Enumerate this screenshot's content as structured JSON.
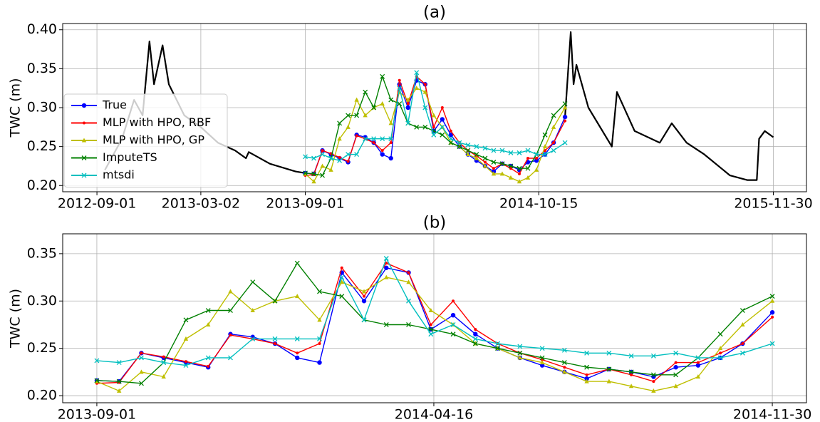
{
  "chart_data": [
    {
      "type": "line",
      "title": "(a)",
      "y_label": "TWC (m)",
      "xlim": [
        "2012-07-03",
        "2016-01-27"
      ],
      "ylim": [
        0.192,
        0.408
      ],
      "xticks": [
        "2012-09-01",
        "2013-03-02",
        "2013-09-01",
        "2014-10-15",
        "2015-11-30"
      ],
      "yticks": [
        {
          "value": 0.2,
          "label": "0.20"
        },
        0.25,
        {
          "value": 0.3,
          "label": "0.30"
        },
        0.35,
        {
          "value": 0.4,
          "label": "0.40"
        }
      ],
      "grid": true,
      "legend": "upper left",
      "x": [
        "2013-09-01",
        "2013-09-16",
        "2013-10-01",
        "2013-10-16",
        "2013-10-31",
        "2013-11-15",
        "2013-11-30",
        "2013-12-15",
        "2013-12-30",
        "2014-01-14",
        "2014-01-29",
        "2014-02-13",
        "2014-02-28",
        "2014-03-15",
        "2014-03-30",
        "2014-04-14",
        "2014-04-29",
        "2014-05-14",
        "2014-05-29",
        "2014-06-13",
        "2014-06-28",
        "2014-07-13",
        "2014-07-28",
        "2014-08-12",
        "2014-08-27",
        "2014-09-11",
        "2014-09-26",
        "2014-10-11",
        "2014-10-26",
        "2014-11-10",
        "2014-11-30"
      ],
      "series": [
        {
          "color": "#000000",
          "marker": "none",
          "x": [
            "2012-09-15",
            "2012-10-15",
            "2012-11-05",
            "2012-11-20",
            "2012-12-02",
            "2012-12-10",
            "2012-12-25",
            "2013-01-05",
            "2013-02-01",
            "2013-03-02",
            "2013-04-01",
            "2013-05-01",
            "2013-05-20",
            "2013-05-25",
            "2013-07-01",
            "2013-08-15",
            "2013-09-01",
            "2014-04-16",
            "2014-11-30",
            "2014-12-10",
            "2014-12-15",
            "2014-12-20",
            "2015-01-10",
            "2015-02-20",
            "2015-03-01",
            "2015-04-01",
            "2015-05-15",
            "2015-06-05",
            "2015-07-01",
            "2015-08-01",
            "2015-09-15",
            "2015-10-15",
            "2015-11-01",
            "2015-11-05",
            "2015-11-15",
            "2015-11-30"
          ],
          "values": [
            0.22,
            0.26,
            0.31,
            0.29,
            0.385,
            0.33,
            0.38,
            0.33,
            0.29,
            0.275,
            0.255,
            0.245,
            0.235,
            0.243,
            0.228,
            0.218,
            0.216,
            null,
            0.288,
            0.397,
            0.33,
            0.355,
            0.3,
            0.25,
            0.32,
            0.27,
            0.255,
            0.28,
            0.255,
            0.24,
            0.213,
            0.207,
            0.207,
            0.26,
            0.27,
            0.262
          ]
        },
        {
          "name": "True",
          "color": "#0000ff",
          "marker": "circle",
          "values": [
            0.216,
            0.215,
            0.245,
            0.24,
            0.235,
            0.23,
            0.265,
            0.262,
            0.255,
            0.24,
            0.235,
            0.33,
            0.3,
            0.335,
            0.33,
            0.27,
            0.285,
            0.265,
            0.25,
            0.24,
            0.232,
            0.225,
            0.218,
            0.228,
            0.225,
            0.22,
            0.23,
            0.232,
            0.24,
            0.255,
            0.288
          ]
        },
        {
          "name": "MLP with HPO, RBF",
          "color": "#ff0000",
          "marker": "dot",
          "values": [
            0.213,
            0.214,
            0.245,
            0.241,
            0.236,
            0.231,
            0.264,
            0.26,
            0.255,
            0.245,
            0.255,
            0.335,
            0.305,
            0.34,
            0.33,
            0.275,
            0.3,
            0.27,
            0.255,
            0.245,
            0.238,
            0.23,
            0.222,
            0.228,
            0.222,
            0.215,
            0.235,
            0.235,
            0.245,
            0.255,
            0.283
          ]
        },
        {
          "name": "MLP with HPO, GP",
          "color": "#bfbf00",
          "marker": "triangle",
          "values": [
            0.215,
            0.205,
            0.225,
            0.22,
            0.26,
            0.275,
            0.31,
            0.29,
            0.3,
            0.305,
            0.28,
            0.32,
            0.31,
            0.325,
            0.32,
            0.29,
            0.275,
            0.255,
            0.25,
            0.24,
            0.235,
            0.225,
            0.215,
            0.215,
            0.21,
            0.205,
            0.21,
            0.22,
            0.25,
            0.275,
            0.3
          ]
        },
        {
          "name": "ImputeTS",
          "color": "#008000",
          "marker": "x",
          "values": [
            0.216,
            0.215,
            0.213,
            0.235,
            0.28,
            0.29,
            0.29,
            0.32,
            0.3,
            0.34,
            0.31,
            0.305,
            0.28,
            0.275,
            0.275,
            0.27,
            0.265,
            0.255,
            0.25,
            0.245,
            0.24,
            0.235,
            0.23,
            0.228,
            0.225,
            0.222,
            0.222,
            0.24,
            0.265,
            0.29,
            0.305
          ]
        },
        {
          "name": "mtsdi",
          "color": "#00bfbf",
          "marker": "x",
          "values": [
            0.237,
            0.235,
            0.24,
            0.235,
            0.232,
            0.24,
            0.24,
            0.26,
            0.26,
            0.26,
            0.26,
            0.325,
            0.28,
            0.345,
            0.3,
            0.265,
            0.275,
            0.26,
            0.255,
            0.252,
            0.25,
            0.248,
            0.245,
            0.245,
            0.242,
            0.242,
            0.245,
            0.24,
            0.24,
            0.245,
            0.255
          ]
        }
      ]
    },
    {
      "type": "line",
      "title": "(b)",
      "y_label": "TWC (m)",
      "xlim": [
        "2013-08-09",
        "2014-12-23"
      ],
      "ylim": [
        0.1925,
        0.371
      ],
      "xticks": [
        "2013-09-01",
        "2014-04-16",
        "2014-11-30"
      ],
      "yticks": [
        {
          "value": 0.2,
          "label": "0.20"
        },
        0.25,
        {
          "value": 0.3,
          "label": "0.30"
        },
        0.35
      ],
      "grid": true,
      "x": [
        "2013-09-01",
        "2013-09-16",
        "2013-10-01",
        "2013-10-16",
        "2013-10-31",
        "2013-11-15",
        "2013-11-30",
        "2013-12-15",
        "2013-12-30",
        "2014-01-14",
        "2014-01-29",
        "2014-02-13",
        "2014-02-28",
        "2014-03-15",
        "2014-03-30",
        "2014-04-14",
        "2014-04-29",
        "2014-05-14",
        "2014-05-29",
        "2014-06-13",
        "2014-06-28",
        "2014-07-13",
        "2014-07-28",
        "2014-08-12",
        "2014-08-27",
        "2014-09-11",
        "2014-09-26",
        "2014-10-11",
        "2014-10-26",
        "2014-11-10",
        "2014-11-30"
      ],
      "series": [
        {
          "color": "#0000ff",
          "marker": "circle",
          "values": [
            0.216,
            0.215,
            0.245,
            0.24,
            0.235,
            0.23,
            0.265,
            0.262,
            0.255,
            0.24,
            0.235,
            0.33,
            0.3,
            0.335,
            0.33,
            0.27,
            0.285,
            0.265,
            0.25,
            0.24,
            0.232,
            0.225,
            0.218,
            0.228,
            0.225,
            0.22,
            0.23,
            0.232,
            0.24,
            0.255,
            0.288
          ]
        },
        {
          "color": "#ff0000",
          "marker": "dot",
          "values": [
            0.213,
            0.214,
            0.245,
            0.241,
            0.236,
            0.231,
            0.264,
            0.26,
            0.255,
            0.245,
            0.255,
            0.335,
            0.305,
            0.34,
            0.33,
            0.275,
            0.3,
            0.27,
            0.255,
            0.245,
            0.238,
            0.23,
            0.222,
            0.228,
            0.222,
            0.215,
            0.235,
            0.235,
            0.245,
            0.255,
            0.283
          ]
        },
        {
          "color": "#bfbf00",
          "marker": "triangle",
          "values": [
            0.215,
            0.205,
            0.225,
            0.22,
            0.26,
            0.275,
            0.31,
            0.29,
            0.3,
            0.305,
            0.28,
            0.32,
            0.31,
            0.325,
            0.32,
            0.29,
            0.275,
            0.255,
            0.25,
            0.24,
            0.235,
            0.225,
            0.215,
            0.215,
            0.21,
            0.205,
            0.21,
            0.22,
            0.25,
            0.275,
            0.3
          ]
        },
        {
          "color": "#008000",
          "marker": "x",
          "values": [
            0.216,
            0.215,
            0.213,
            0.235,
            0.28,
            0.29,
            0.29,
            0.32,
            0.3,
            0.34,
            0.31,
            0.305,
            0.28,
            0.275,
            0.275,
            0.27,
            0.265,
            0.255,
            0.25,
            0.245,
            0.24,
            0.235,
            0.23,
            0.228,
            0.225,
            0.222,
            0.222,
            0.24,
            0.265,
            0.29,
            0.305
          ]
        },
        {
          "color": "#00bfbf",
          "marker": "x",
          "values": [
            0.237,
            0.235,
            0.24,
            0.235,
            0.232,
            0.24,
            0.24,
            0.26,
            0.26,
            0.26,
            0.26,
            0.325,
            0.28,
            0.345,
            0.3,
            0.265,
            0.275,
            0.26,
            0.255,
            0.252,
            0.25,
            0.248,
            0.245,
            0.245,
            0.242,
            0.242,
            0.245,
            0.24,
            0.24,
            0.245,
            0.255
          ]
        }
      ]
    }
  ]
}
